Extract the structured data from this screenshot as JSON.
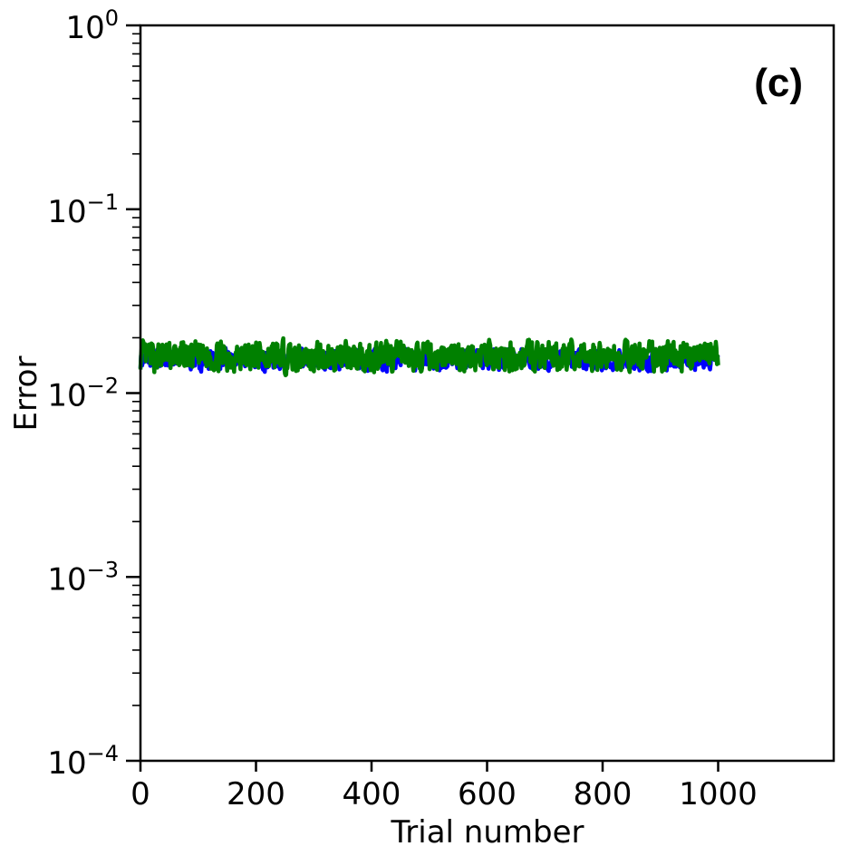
{
  "chart_data": {
    "type": "line",
    "panel_label": "(c)",
    "xlabel": "Trial number",
    "ylabel": "Error",
    "xlim": [
      0,
      1200
    ],
    "ylim": [
      0.0001,
      1
    ],
    "yscale": "log",
    "x_ticks": [
      0,
      200,
      400,
      600,
      800,
      1000
    ],
    "x_tick_labels": [
      "0",
      "200",
      "400",
      "600",
      "800",
      "1000"
    ],
    "y_ticks": [
      {
        "value": 0.0001,
        "base": "10",
        "exp": "−4"
      },
      {
        "value": 0.001,
        "base": "10",
        "exp": "−3"
      },
      {
        "value": 0.01,
        "base": "10",
        "exp": "−2"
      },
      {
        "value": 0.1,
        "base": "10",
        "exp": "−1"
      },
      {
        "value": 1,
        "base": "10",
        "exp": "0"
      }
    ],
    "grid": false,
    "legend": "none",
    "series": [
      {
        "color": "#0000ff",
        "x_range": [
          0,
          1000
        ],
        "points": 1000,
        "center": 0.0152,
        "approx_range": [
          0.0128,
          0.0185
        ],
        "seed": 7
      },
      {
        "color": "#008000",
        "x_range": [
          0,
          1000
        ],
        "points": 1000,
        "center": 0.0158,
        "approx_range": [
          0.0115,
          0.02
        ],
        "seed": 13
      }
    ]
  }
}
